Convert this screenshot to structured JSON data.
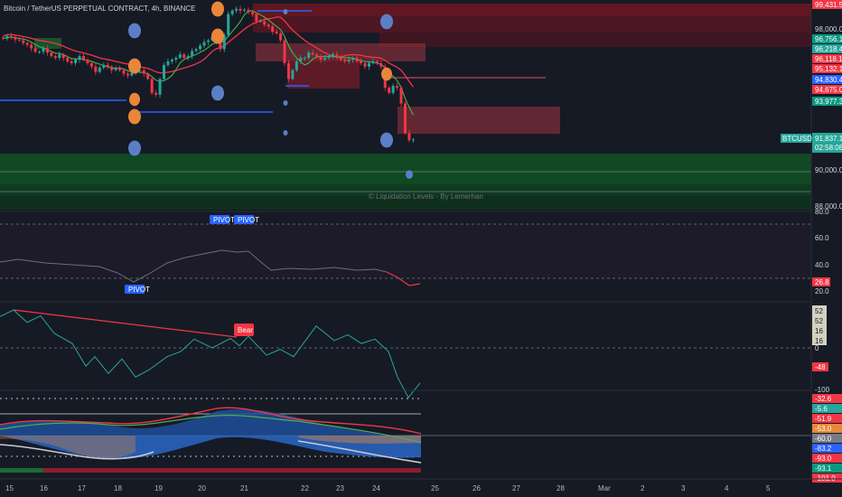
{
  "header": {
    "title": "Bitcoin / TetherUS PERPETUAL CONTRACT, 4h, BINANCE"
  },
  "colors": {
    "background": "#161a25",
    "up": "#26a69a",
    "down": "#f23645",
    "up_bright": "#089981",
    "green_band": "#0f7a2e",
    "red_band": "#8c1d2a",
    "blue": "#2962ff",
    "orange": "#e8873a",
    "circle_blue": "#5b7fc7"
  },
  "watermark": "© Liquidation Levels - By Lemerhan",
  "price_axis": {
    "ticks": [
      "98,000.0",
      "90,000.0",
      "88,000.0"
    ],
    "labels": [
      {
        "text": "99,431.5",
        "color": "#f23645"
      },
      {
        "text": "96,756.1",
        "color": "#089981"
      },
      {
        "text": "96,218.4",
        "color": "#26a69a"
      },
      {
        "text": "96,118.1",
        "color": "#f23645"
      },
      {
        "text": "95,132.1",
        "color": "#f23645"
      },
      {
        "text": "94,830.4",
        "color": "#2962ff"
      },
      {
        "text": "94,675.0",
        "color": "#f23645"
      },
      {
        "text": "93,977.3",
        "color": "#089981"
      }
    ],
    "symbol_tag": "BTCUSDT.P",
    "last_price": "91,837.1",
    "countdown": "02:58:08"
  },
  "rsi_panel": {
    "ticks": [
      "80.0",
      "60.0",
      "40.0",
      "20.0"
    ],
    "value_label": "26.8",
    "pivot_labels": [
      "PIVOT",
      "PIVOT",
      "PIVOT"
    ]
  },
  "osc_panel": {
    "ticks": [
      "52",
      "52",
      "16",
      "16",
      "0",
      "-100"
    ],
    "value_label": "-48",
    "bear_label": "Bear"
  },
  "bottom_panel": {
    "labels": [
      {
        "text": "-32.6",
        "color": "#f23645"
      },
      {
        "text": "-5.6",
        "color": "#26a69a"
      },
      {
        "text": "-51.9",
        "color": "#f23645"
      },
      {
        "text": "-53.0",
        "color": "#e8873a"
      },
      {
        "text": "-60.0",
        "color": "#787b86"
      },
      {
        "text": "-83.2",
        "color": "#2962ff"
      },
      {
        "text": "-93.0",
        "color": "#f23645"
      },
      {
        "text": "-93.1",
        "color": "#089981"
      },
      {
        "text": "-101.0",
        "color": "#f23645"
      }
    ]
  },
  "time_axis": [
    "15",
    "16",
    "17",
    "18",
    "19",
    "20",
    "21",
    "22",
    "23",
    "24",
    "25",
    "26",
    "27",
    "28",
    "Mar",
    "2",
    "3",
    "4",
    "5"
  ],
  "chart_data": {
    "type": "candlestick",
    "title": "Bitcoin / TetherUS PERPETUAL CONTRACT, 4h, BINANCE",
    "x_labels": [
      "15",
      "16",
      "17",
      "18",
      "19",
      "20",
      "21",
      "22",
      "23",
      "24",
      "25",
      "26",
      "27",
      "28",
      "Mar",
      "2",
      "3",
      "4",
      "5"
    ],
    "y_ticks": [
      98000,
      90000,
      88000
    ],
    "price_labels": [
      99431.5,
      96756.1,
      96218.4,
      96118.1,
      95132.1,
      94830.4,
      94675.0,
      93977.3,
      91837.1
    ],
    "close_series": [
      97600,
      97750,
      97700,
      97550,
      97500,
      97350,
      97250,
      97050,
      96850,
      96850,
      97050,
      96800,
      96600,
      96500,
      96700,
      96500,
      96300,
      96200,
      96400,
      96600,
      96400,
      96200,
      96000,
      95700,
      95950,
      96100,
      96000,
      95800,
      95900,
      95800,
      95600,
      95500,
      95650,
      95750,
      95800,
      95600,
      95300,
      94500,
      94400,
      95300,
      96100,
      96300,
      96400,
      96500,
      96700,
      96500,
      96600,
      96900,
      97000,
      97200,
      97400,
      97500,
      97700,
      97400,
      97000,
      97800,
      99000,
      99200,
      99300,
      99200,
      99250,
      99100,
      99000,
      98600,
      98600,
      98400,
      98300,
      98000,
      97900,
      97500,
      96200,
      95300,
      95800,
      96300,
      96500,
      96500,
      96800,
      96700,
      96600,
      96400,
      96500,
      96600,
      96700,
      96600,
      96400,
      96300,
      96400,
      96500,
      96300,
      96200,
      96000,
      96200,
      96300,
      96200,
      96000,
      94800,
      94500,
      94900,
      94800,
      93900,
      92200,
      91800,
      91837.1
    ],
    "rsi": [
      {
        "x": 0,
        "y": 53
      },
      {
        "x": 20,
        "y": 56
      },
      {
        "x": 50,
        "y": 52
      },
      {
        "x": 80,
        "y": 50
      },
      {
        "x": 110,
        "y": 48
      },
      {
        "x": 130,
        "y": 41
      },
      {
        "x": 148,
        "y": 31
      },
      {
        "x": 165,
        "y": 40
      },
      {
        "x": 185,
        "y": 52
      },
      {
        "x": 205,
        "y": 58
      },
      {
        "x": 225,
        "y": 62
      },
      {
        "x": 245,
        "y": 66
      },
      {
        "x": 262,
        "y": 64
      },
      {
        "x": 275,
        "y": 65
      },
      {
        "x": 290,
        "y": 52
      },
      {
        "x": 300,
        "y": 44
      },
      {
        "x": 320,
        "y": 46
      },
      {
        "x": 345,
        "y": 45
      },
      {
        "x": 370,
        "y": 47
      },
      {
        "x": 395,
        "y": 44
      },
      {
        "x": 415,
        "y": 45
      },
      {
        "x": 428,
        "y": 42
      },
      {
        "x": 440,
        "y": 36
      },
      {
        "x": 453,
        "y": 27
      },
      {
        "x": 465,
        "y": 29
      }
    ],
    "oscillator": [
      {
        "x": 0,
        "y": 43
      },
      {
        "x": 15,
        "y": 52
      },
      {
        "x": 30,
        "y": 35
      },
      {
        "x": 45,
        "y": 44
      },
      {
        "x": 60,
        "y": 20
      },
      {
        "x": 80,
        "y": 6
      },
      {
        "x": 95,
        "y": -25
      },
      {
        "x": 105,
        "y": -12
      },
      {
        "x": 120,
        "y": -35
      },
      {
        "x": 135,
        "y": -15
      },
      {
        "x": 150,
        "y": -40
      },
      {
        "x": 165,
        "y": -30
      },
      {
        "x": 185,
        "y": -12
      },
      {
        "x": 200,
        "y": -5
      },
      {
        "x": 215,
        "y": 12
      },
      {
        "x": 235,
        "y": 0
      },
      {
        "x": 255,
        "y": 13
      },
      {
        "x": 265,
        "y": 3
      },
      {
        "x": 275,
        "y": 16
      },
      {
        "x": 295,
        "y": -10
      },
      {
        "x": 310,
        "y": -2
      },
      {
        "x": 325,
        "y": -12
      },
      {
        "x": 350,
        "y": 30
      },
      {
        "x": 370,
        "y": 10
      },
      {
        "x": 385,
        "y": 18
      },
      {
        "x": 400,
        "y": 6
      },
      {
        "x": 415,
        "y": 12
      },
      {
        "x": 430,
        "y": -5
      },
      {
        "x": 440,
        "y": -40
      },
      {
        "x": 452,
        "y": -68
      },
      {
        "x": 465,
        "y": -48
      }
    ]
  }
}
